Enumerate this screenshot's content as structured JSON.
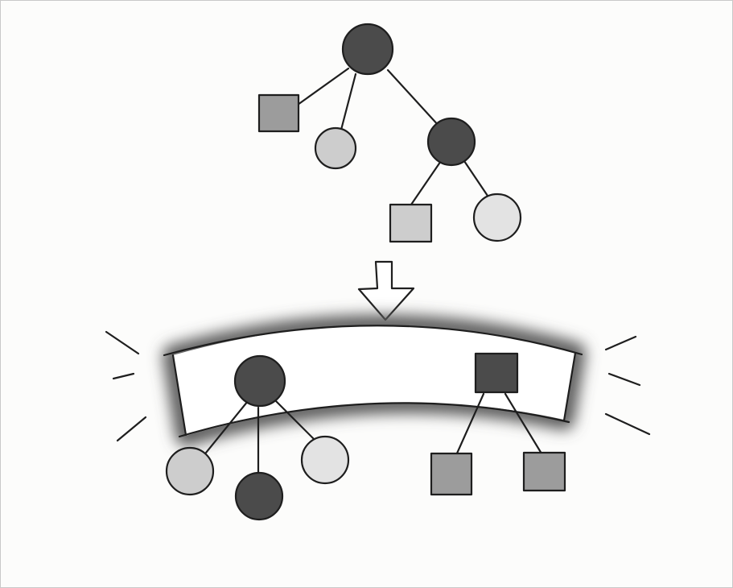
{
  "colors": {
    "dark": "#4b4b4b",
    "mid": "#9c9c9c",
    "light": "#cdcdcd",
    "lighter": "#e3e3e3",
    "ink": "#1e1e1e",
    "glow": "#5a5a5a",
    "page": "#fcfcfb"
  },
  "diagram": {
    "source_tree": {
      "root": {
        "shape": "circle",
        "shade": "dark"
      },
      "children": [
        {
          "shape": "square",
          "shade": "mid"
        },
        {
          "shape": "circle",
          "shade": "light"
        },
        {
          "shape": "circle",
          "shade": "dark",
          "children": [
            {
              "shape": "square",
              "shade": "light"
            },
            {
              "shape": "circle",
              "shade": "lighter"
            }
          ]
        }
      ]
    },
    "transition_arrow": {
      "shape": "hollow-down-arrow"
    },
    "glowing_band": {
      "shape": "curved-band",
      "emphasis": "glow-and-radiating-lines"
    },
    "result_trees": [
      {
        "root": {
          "shape": "circle",
          "shade": "dark"
        },
        "children": [
          {
            "shape": "circle",
            "shade": "light"
          },
          {
            "shape": "circle",
            "shade": "dark"
          },
          {
            "shape": "circle",
            "shade": "lighter"
          }
        ]
      },
      {
        "root": {
          "shape": "square",
          "shade": "dark"
        },
        "children": [
          {
            "shape": "square",
            "shade": "mid"
          },
          {
            "shape": "square",
            "shade": "mid"
          }
        ]
      }
    ]
  }
}
